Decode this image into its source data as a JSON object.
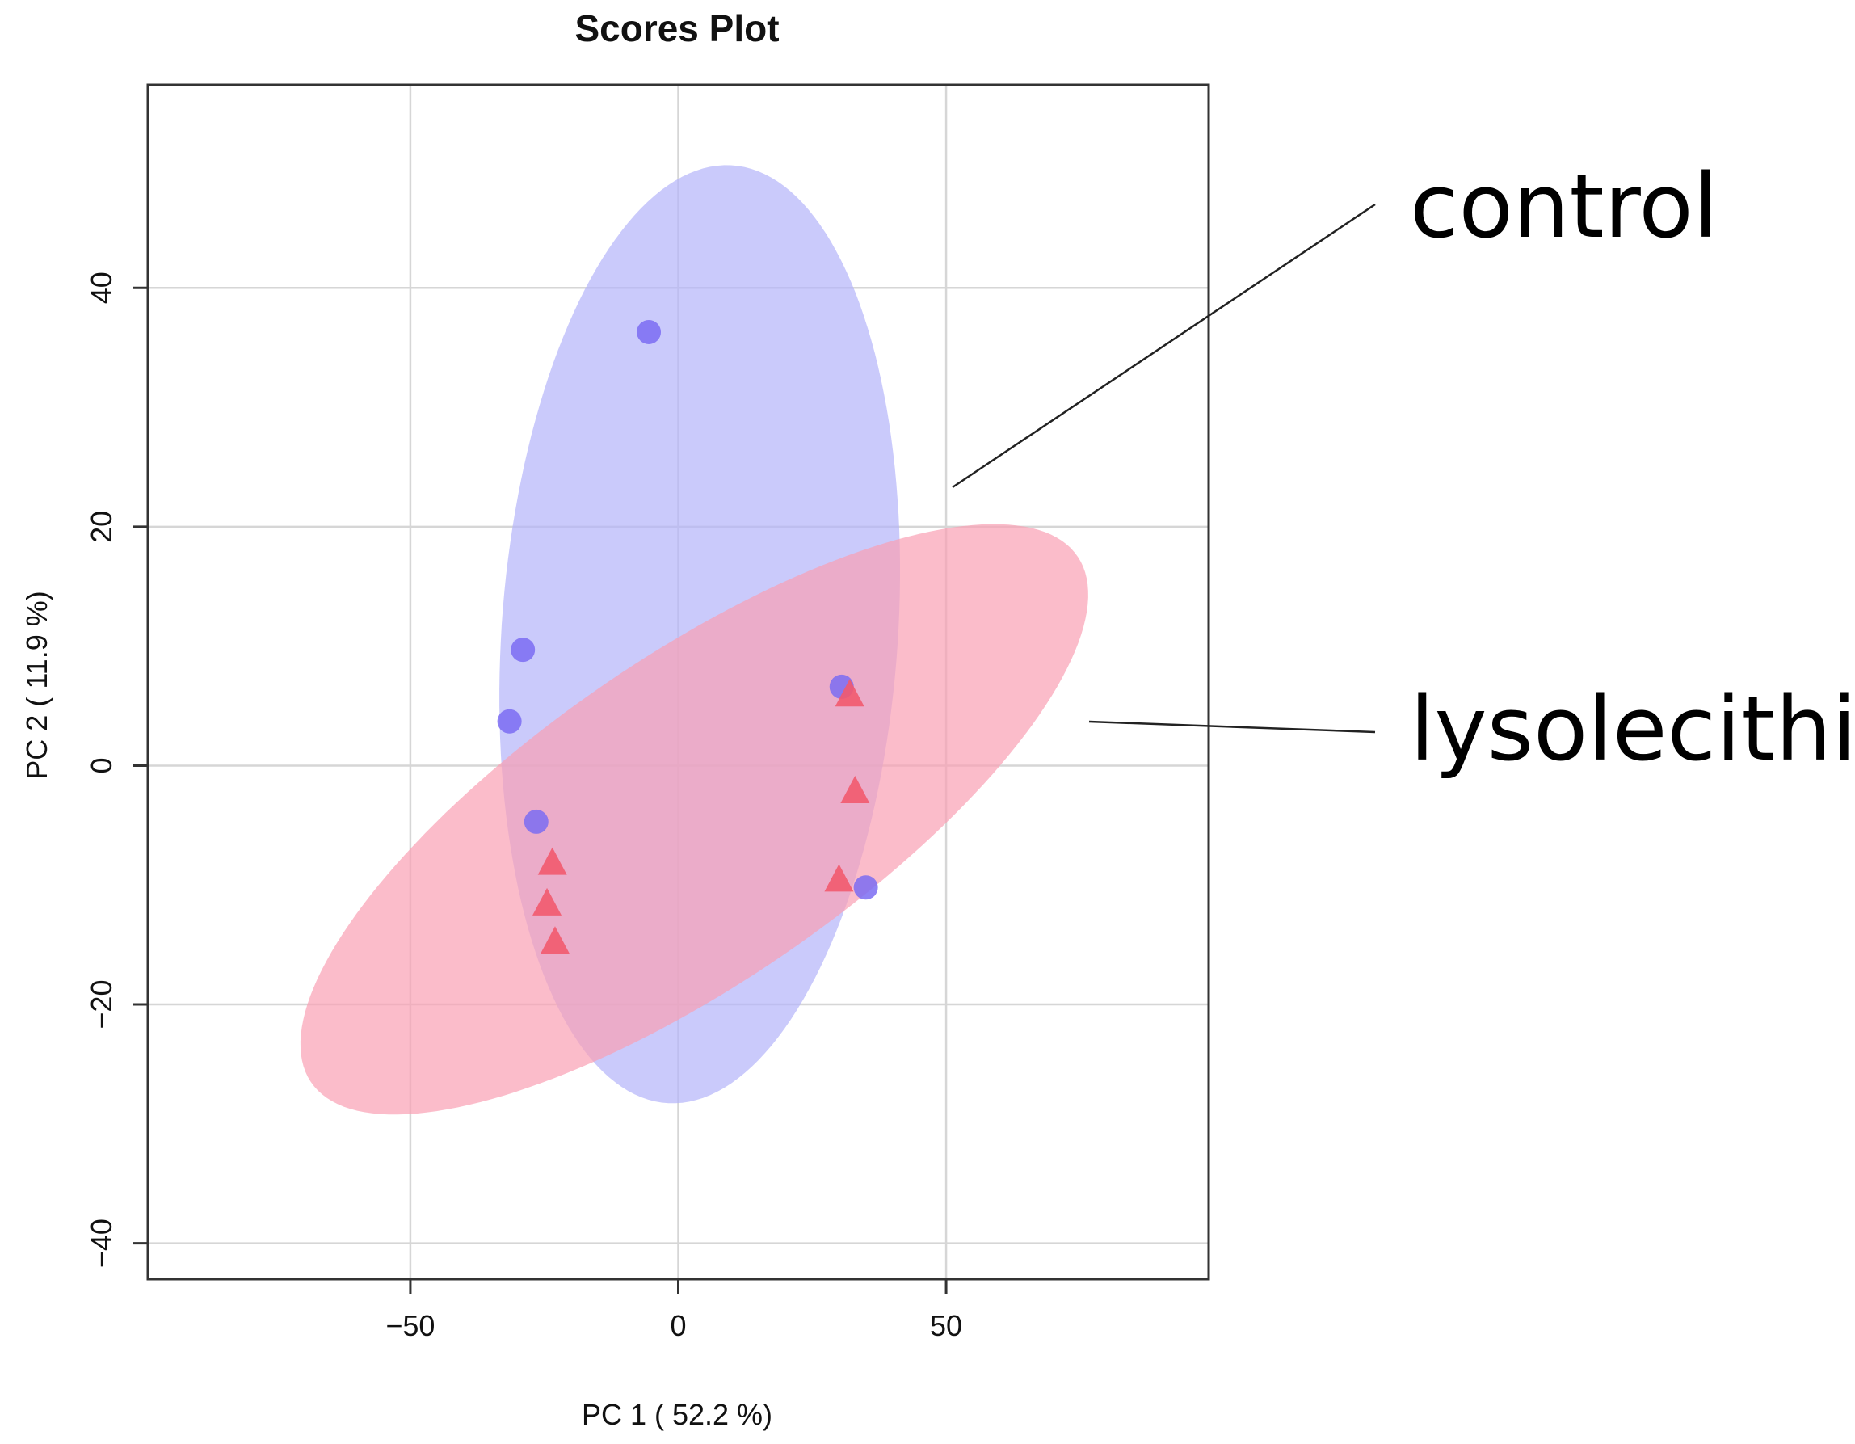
{
  "chart_data": {
    "type": "scatter",
    "title": "Scores Plot",
    "xlabel": "PC 1 ( 52.2 %)",
    "ylabel": "PC 2 ( 11.9 %)",
    "xlim": [
      -99,
      99
    ],
    "ylim": [
      -43,
      57
    ],
    "x_ticks": [
      -50,
      0,
      50
    ],
    "y_ticks": [
      -40,
      -20,
      0,
      20,
      40
    ],
    "grid": true,
    "legend": "none",
    "series": [
      {
        "name": "control",
        "marker": "circle",
        "color": "#7b6cf2",
        "points": [
          {
            "x": -5.5,
            "y": 36.3
          },
          {
            "x": -29.0,
            "y": 9.7
          },
          {
            "x": -31.5,
            "y": 3.7
          },
          {
            "x": -26.5,
            "y": -4.7
          },
          {
            "x": 30.5,
            "y": 6.6
          },
          {
            "x": 35.0,
            "y": -10.2
          }
        ],
        "ellipse": {
          "center": [
            4.0,
            11.0
          ],
          "semi_axis_major": 41.0,
          "semi_axis_minor": 35.5,
          "rotation_deg": 55,
          "fill": "#b4b4fa"
        }
      },
      {
        "name": "lysolecithin",
        "marker": "triangle",
        "color": "#f25a6e",
        "points": [
          {
            "x": 32.0,
            "y": 5.9
          },
          {
            "x": 33.0,
            "y": -2.2
          },
          {
            "x": 30.0,
            "y": -9.6
          },
          {
            "x": -23.5,
            "y": -8.2
          },
          {
            "x": -24.5,
            "y": -11.6
          },
          {
            "x": -23.0,
            "y": -14.8
          }
        ],
        "ellipse": {
          "center": [
            3.0,
            -4.5
          ],
          "semi_axis_major": 76.0,
          "semi_axis_minor": 15.5,
          "rotation_deg": 15,
          "fill": "#f9a0b4"
        }
      }
    ],
    "annotations": [
      {
        "text": "control",
        "target_series": "control"
      },
      {
        "text": "lysolecithin",
        "target_series": "lysolecithin"
      }
    ]
  }
}
